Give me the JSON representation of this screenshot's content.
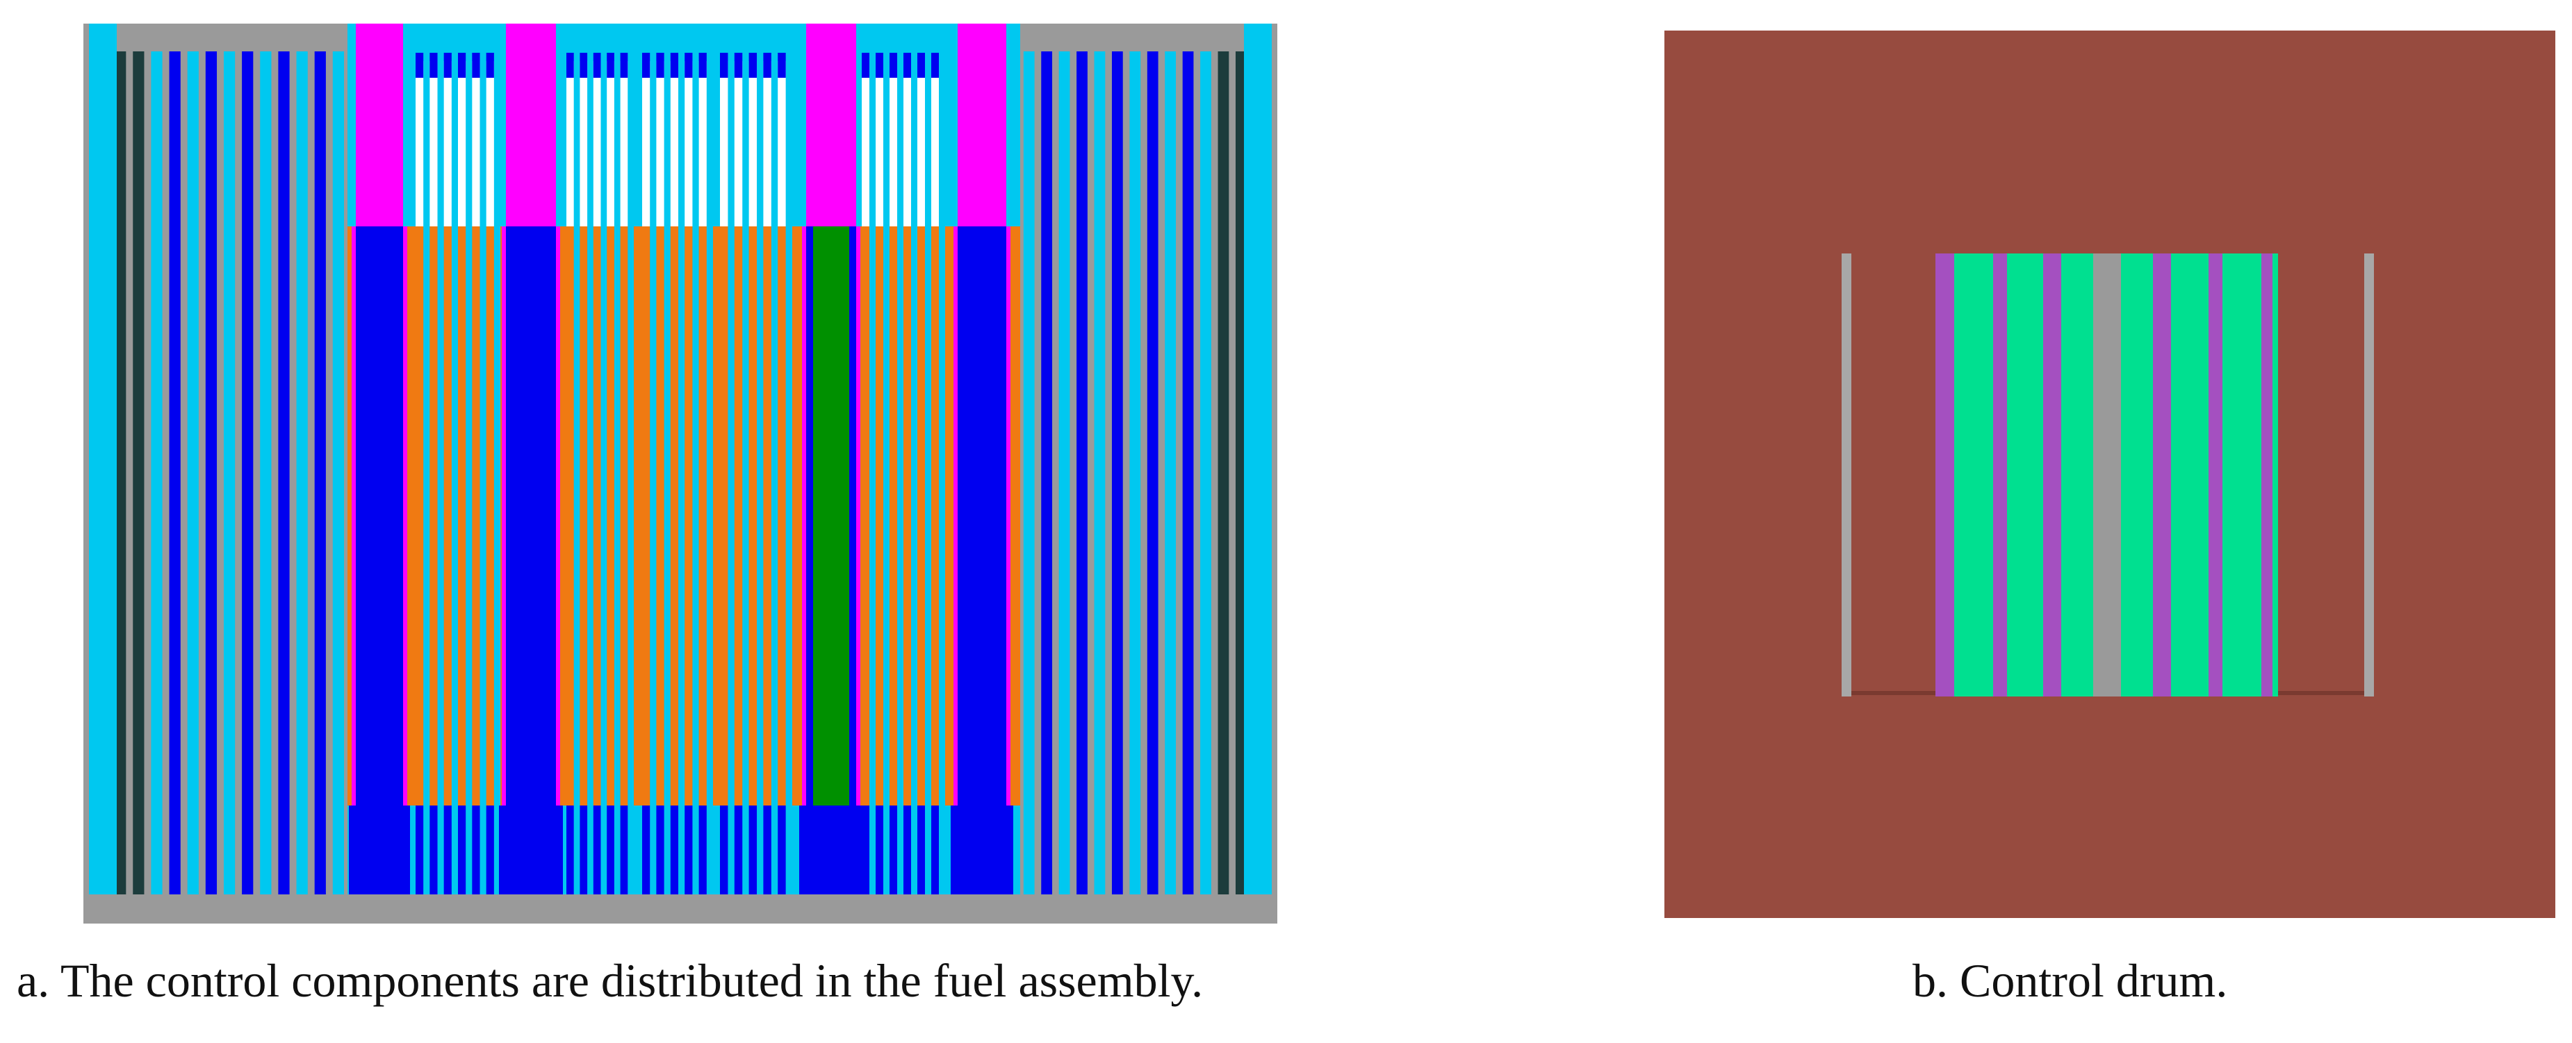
{
  "captions": {
    "a": "a. The control components are distributed in the fuel assembly.",
    "b": "b. Control drum."
  },
  "colors": {
    "cyan": "#00c8f0",
    "blue": "#0000f0",
    "dark_slate": "#1c3c3c",
    "magenta": "#ff00ff",
    "orange": "#f07a12",
    "green": "#009000",
    "gray": "#9a9a9a",
    "white": "#ffffff",
    "brown": "#974b3f",
    "teal_green": "#00e090",
    "purple": "#a450c0",
    "light_gray": "#a8a8a8"
  }
}
